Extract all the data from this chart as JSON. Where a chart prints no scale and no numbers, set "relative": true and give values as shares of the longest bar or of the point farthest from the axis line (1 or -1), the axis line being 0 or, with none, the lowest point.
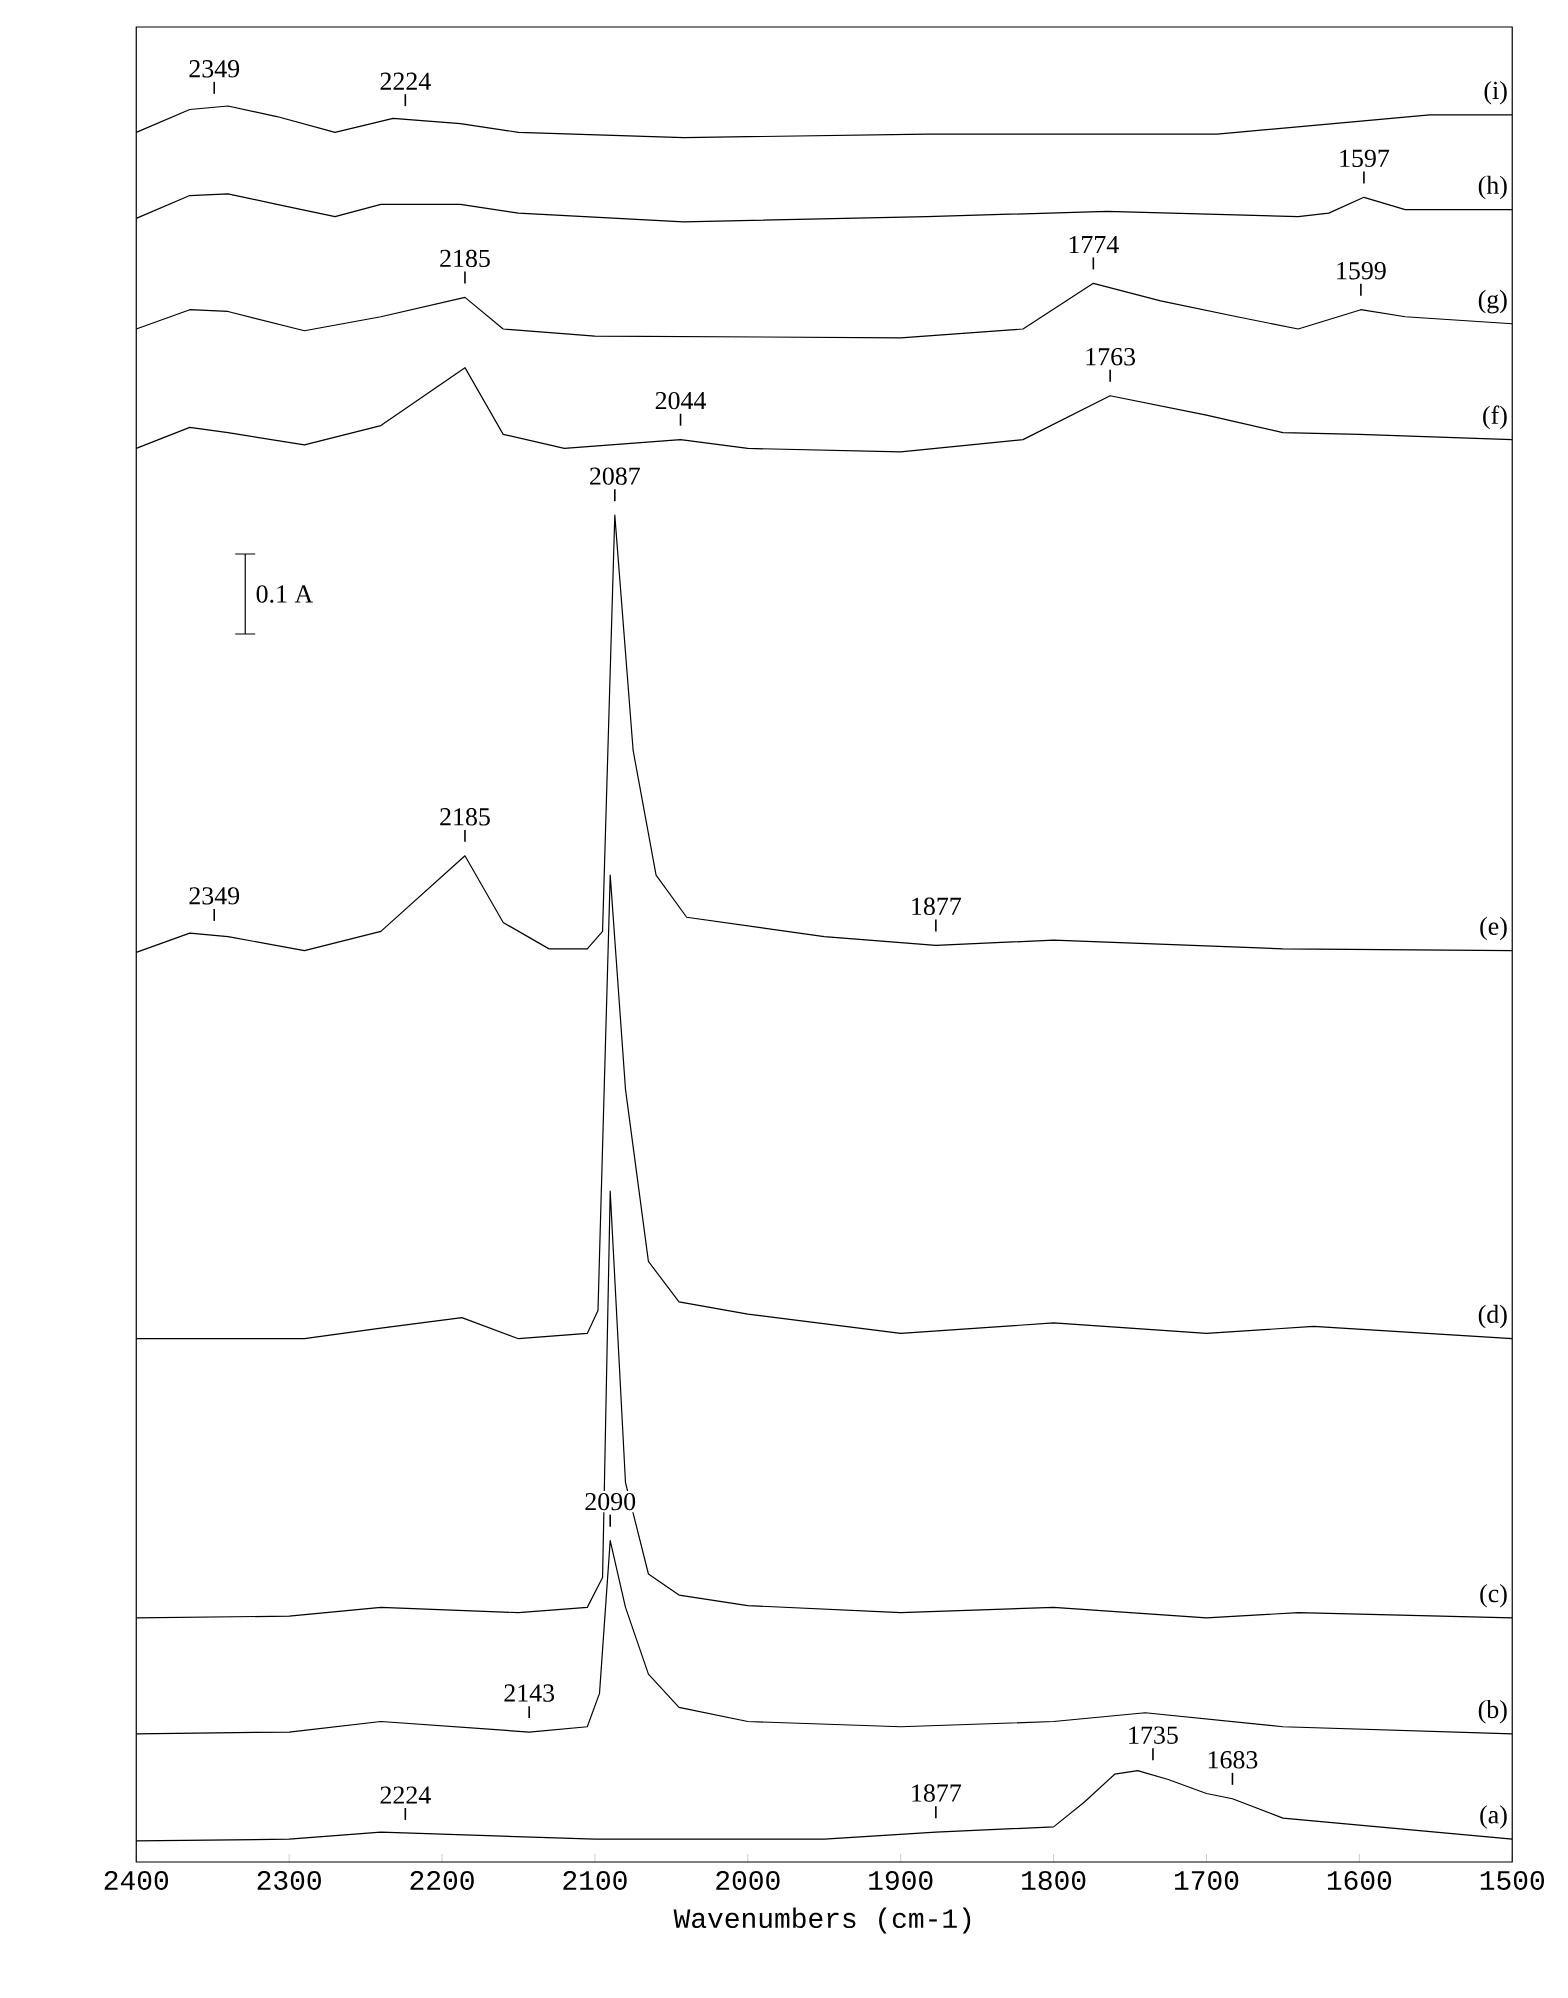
{
  "chart_data": {
    "type": "line",
    "relative": true,
    "xlabel": "Wavenumbers (cm-1)",
    "xlim": [
      2400,
      1500
    ],
    "xticks": [
      2400,
      2300,
      2200,
      2100,
      2000,
      1900,
      1800,
      1700,
      1600,
      1500
    ],
    "line_style": "solid",
    "series": [
      {
        "name": "(a)",
        "color": "#000000",
        "x": [
          2400,
          2300,
          2240,
          2100,
          1950,
          1877,
          1800,
          1780,
          1760,
          1745,
          1725,
          1700,
          1683,
          1650,
          1600,
          1500
        ],
        "values": [
          0.012,
          0.013,
          0.017,
          0.013,
          0.013,
          0.017,
          0.02,
          0.034,
          0.05,
          0.052,
          0.047,
          0.039,
          0.036,
          0.025,
          0.021,
          0.013
        ]
      },
      {
        "name": "(b)",
        "color": "#000000",
        "x": [
          2400,
          2300,
          2240,
          2143,
          2105,
          2097,
          2090,
          2080,
          2065,
          2045,
          2000,
          1900,
          1800,
          1740,
          1650,
          1500
        ],
        "values": [
          0.073,
          0.074,
          0.08,
          0.074,
          0.077,
          0.096,
          0.183,
          0.145,
          0.107,
          0.088,
          0.08,
          0.077,
          0.08,
          0.085,
          0.077,
          0.073
        ]
      },
      {
        "name": "(c)",
        "color": "#000000",
        "x": [
          2400,
          2300,
          2240,
          2150,
          2105,
          2095,
          2090,
          2080,
          2065,
          2045,
          2000,
          1900,
          1800,
          1700,
          1640,
          1500
        ],
        "values": [
          0.139,
          0.14,
          0.145,
          0.142,
          0.145,
          0.162,
          0.382,
          0.216,
          0.164,
          0.152,
          0.146,
          0.142,
          0.145,
          0.139,
          0.142,
          0.139
        ]
      },
      {
        "name": "(d)",
        "color": "#000000",
        "x": [
          2400,
          2290,
          2240,
          2187,
          2150,
          2105,
          2098,
          2090,
          2080,
          2065,
          2045,
          2000,
          1900,
          1800,
          1700,
          1630,
          1500
        ],
        "values": [
          0.298,
          0.298,
          0.304,
          0.31,
          0.298,
          0.301,
          0.314,
          0.562,
          0.44,
          0.342,
          0.319,
          0.312,
          0.301,
          0.307,
          0.301,
          0.305,
          0.298
        ]
      },
      {
        "name": "(e)",
        "color": "#000000",
        "x": [
          2400,
          2365,
          2340,
          2290,
          2240,
          2185,
          2160,
          2130,
          2105,
          2095,
          2087,
          2075,
          2060,
          2040,
          1950,
          1877,
          1800,
          1650,
          1500
        ],
        "values": [
          0.518,
          0.529,
          0.527,
          0.519,
          0.53,
          0.573,
          0.535,
          0.52,
          0.52,
          0.53,
          0.767,
          0.633,
          0.562,
          0.538,
          0.527,
          0.522,
          0.525,
          0.52,
          0.519
        ]
      },
      {
        "name": "(f)",
        "color": "#000000",
        "x": [
          2400,
          2365,
          2340,
          2290,
          2240,
          2185,
          2160,
          2120,
          2044,
          2000,
          1900,
          1820,
          1763,
          1700,
          1650,
          1600,
          1500
        ],
        "values": [
          0.805,
          0.817,
          0.814,
          0.807,
          0.818,
          0.851,
          0.813,
          0.805,
          0.81,
          0.805,
          0.803,
          0.81,
          0.835,
          0.824,
          0.814,
          0.813,
          0.81
        ]
      },
      {
        "name": "(g)",
        "color": "#000000",
        "x": [
          2400,
          2365,
          2340,
          2290,
          2240,
          2185,
          2160,
          2100,
          1900,
          1820,
          1774,
          1730,
          1680,
          1640,
          1599,
          1570,
          1500
        ],
        "values": [
          0.873,
          0.884,
          0.883,
          0.872,
          0.88,
          0.891,
          0.873,
          0.869,
          0.868,
          0.873,
          0.899,
          0.889,
          0.88,
          0.873,
          0.884,
          0.88,
          0.876
        ]
      },
      {
        "name": "(h)",
        "color": "#000000",
        "x": [
          2400,
          2365,
          2340,
          2308,
          2270,
          2240,
          2188,
          2150,
          2042,
          1883,
          1765,
          1640,
          1620,
          1597,
          1570,
          1500
        ],
        "values": [
          0.936,
          0.949,
          0.95,
          0.944,
          0.937,
          0.944,
          0.944,
          0.939,
          0.934,
          0.937,
          0.94,
          0.937,
          0.939,
          0.948,
          0.941,
          0.941
        ]
      },
      {
        "name": "(i)",
        "color": "#000000",
        "x": [
          2400,
          2365,
          2340,
          2308,
          2270,
          2232,
          2188,
          2150,
          2042,
          1883,
          1693,
          1617,
          1554,
          1500
        ],
        "values": [
          0.985,
          0.998,
          1.0,
          0.994,
          0.985,
          0.993,
          0.99,
          0.985,
          0.982,
          0.984,
          0.984,
          0.99,
          0.995,
          0.995
        ]
      }
    ],
    "annotations": [
      "0.1 A",
      {
        "text": "2349",
        "x": 2349,
        "y": 0.999
      },
      {
        "text": "2224",
        "x": 2224,
        "y": 0.992
      },
      {
        "text": "1597",
        "x": 1597,
        "y": 0.948
      },
      {
        "text": "2185",
        "x": 2185,
        "y": 0.891
      },
      {
        "text": "1774",
        "x": 1774,
        "y": 0.899
      },
      {
        "text": "1599",
        "x": 1599,
        "y": 0.884
      },
      {
        "text": "2044",
        "x": 2044,
        "y": 0.81
      },
      {
        "text": "1763",
        "x": 1763,
        "y": 0.835
      },
      {
        "text": "2087",
        "x": 2087,
        "y": 0.767
      },
      {
        "text": "2185",
        "x": 2185,
        "y": 0.573
      },
      {
        "text": "2349",
        "x": 2349,
        "y": 0.528
      },
      {
        "text": "1877",
        "x": 1877,
        "y": 0.522
      },
      {
        "text": "2090",
        "x": 2090,
        "y": 0.183
      },
      {
        "text": "2143",
        "x": 2143,
        "y": 0.074
      },
      {
        "text": "2224",
        "x": 2224,
        "y": 0.016
      },
      {
        "text": "1877",
        "x": 1877,
        "y": 0.017
      },
      {
        "text": "1735",
        "x": 1735,
        "y": 0.05
      },
      {
        "text": "1683",
        "x": 1683,
        "y": 0.036
      }
    ]
  }
}
